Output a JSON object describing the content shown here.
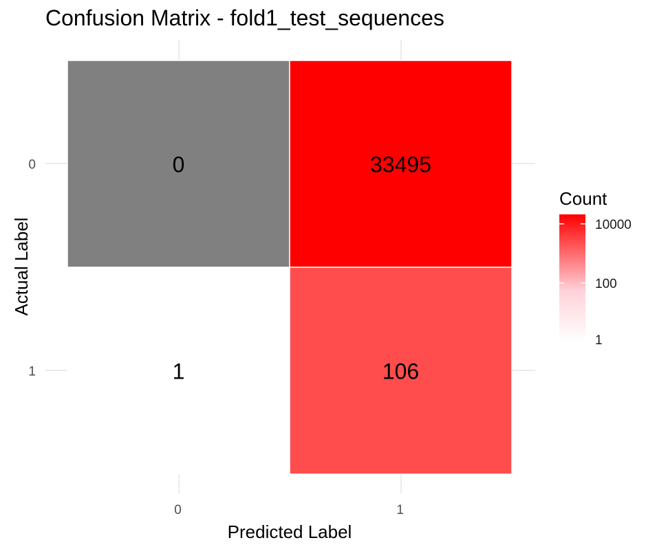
{
  "chart_data": {
    "type": "heatmap",
    "title": "Confusion Matrix - fold1_test_sequences",
    "xlabel": "Predicted Label",
    "ylabel": "Actual Label",
    "x_categories": [
      "0",
      "1"
    ],
    "y_categories": [
      "0",
      "1"
    ],
    "cells": [
      {
        "actual": "0",
        "predicted": "0",
        "value": 0
      },
      {
        "actual": "0",
        "predicted": "1",
        "value": 33495
      },
      {
        "actual": "1",
        "predicted": "0",
        "value": 1
      },
      {
        "actual": "1",
        "predicted": "1",
        "value": 106
      }
    ],
    "legend": {
      "title": "Count",
      "scale": "log10",
      "ticks": [
        "1",
        "100",
        "10000"
      ],
      "tick_values": [
        1,
        100,
        10000
      ],
      "color_low": "#ffffff",
      "color_high": "#ff0000",
      "zero_color": "#808080"
    },
    "grid": true
  }
}
